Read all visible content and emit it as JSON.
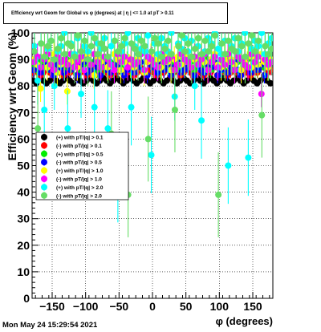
{
  "timestamp": "Mon May 24 15:29:54 2021",
  "chart_data": {
    "type": "scatter",
    "title": "Efficiency wrt Geom for Global vs φ (degrees) at | η | <= 1.0 at pT > 0.11",
    "xlabel": "φ (degrees)",
    "ylabel": "Efficiency wrt Geom (%)",
    "xlim": [
      -180,
      180
    ],
    "ylim": [
      0,
      100
    ],
    "x_ticks": [
      -150,
      -100,
      -50,
      0,
      50,
      100,
      150
    ],
    "x_tick_labels": [
      "−150",
      "−100",
      "−50",
      "0",
      "50",
      "100",
      "150"
    ],
    "y_ticks": [
      0,
      10,
      20,
      30,
      40,
      50,
      60,
      70,
      80,
      90,
      100
    ],
    "y_tick_labels": [
      "0",
      "10",
      "20",
      "30",
      "40",
      "50",
      "60",
      "70",
      "80",
      "90",
      "100"
    ],
    "grid": true,
    "legend_position": "middle-left",
    "bins": {
      "start": -177.5,
      "step": 5,
      "count": 72
    },
    "series": [
      {
        "name": "(+) with pT/|q| > 0.1",
        "color": "#000000",
        "marker": "circle",
        "values": [
          82,
          81,
          83,
          82,
          81,
          82,
          83,
          82,
          81,
          82,
          83,
          82,
          81,
          83,
          82,
          81,
          82,
          83,
          82,
          81,
          82,
          83,
          82,
          81,
          82,
          83,
          82,
          81,
          82,
          83,
          82,
          81,
          82,
          83,
          82,
          81,
          82,
          83,
          82,
          81,
          82,
          83,
          82,
          81,
          82,
          83,
          82,
          81,
          82,
          83,
          82,
          81,
          82,
          83,
          82,
          81,
          82,
          83,
          82,
          81,
          82,
          83,
          82,
          81,
          82,
          83,
          82,
          81,
          82,
          83,
          82,
          81
        ],
        "err": 1
      },
      {
        "name": "(-) with pT/|q| > 0.1",
        "color": "#ff0000",
        "marker": "circle",
        "values": [
          85,
          86,
          84,
          85,
          87,
          85,
          84,
          86,
          85,
          84,
          86,
          85,
          87,
          84,
          85,
          86,
          84,
          85,
          87,
          85,
          84,
          86,
          85,
          84,
          86,
          85,
          87,
          84,
          85,
          86,
          84,
          85,
          87,
          85,
          84,
          86,
          85,
          84,
          86,
          85,
          87,
          84,
          85,
          86,
          84,
          85,
          87,
          85,
          84,
          86,
          85,
          84,
          86,
          85,
          87,
          84,
          85,
          86,
          84,
          85,
          87,
          85,
          84,
          86,
          85,
          84,
          86,
          85,
          87,
          84,
          85,
          86
        ],
        "err": 2
      },
      {
        "name": "(+) with pT/|q| > 0.5",
        "color": "#00ee00",
        "marker": "circle",
        "values": [
          88,
          86,
          89,
          87,
          90,
          86,
          88,
          89,
          87,
          86,
          90,
          88,
          87,
          89,
          86,
          88,
          90,
          87,
          89,
          86,
          88,
          87,
          90,
          89,
          86,
          88,
          87,
          89,
          90,
          86,
          88,
          87,
          89,
          86,
          90,
          88,
          87,
          89,
          86,
          88,
          90,
          87,
          89,
          86,
          88,
          87,
          90,
          89,
          86,
          88,
          87,
          89,
          90,
          86,
          88,
          87,
          89,
          86,
          90,
          88,
          87,
          89,
          86,
          88,
          90,
          87,
          89,
          86,
          88,
          87,
          90,
          89
        ],
        "err": 3
      },
      {
        "name": "(-) with pT/|q| > 0.5",
        "color": "#0000ff",
        "marker": "circle",
        "values": [
          86,
          88,
          85,
          87,
          89,
          86,
          84,
          88,
          87,
          85,
          89,
          86,
          88,
          84,
          87,
          89,
          85,
          86,
          88,
          87,
          84,
          89,
          86,
          85,
          88,
          87,
          89,
          84,
          86,
          88,
          85,
          87,
          89,
          86,
          84,
          88,
          87,
          85,
          89,
          86,
          88,
          84,
          87,
          89,
          85,
          86,
          88,
          87,
          84,
          89,
          86,
          85,
          88,
          87,
          89,
          84,
          86,
          88,
          85,
          87,
          89,
          86,
          84,
          88,
          87,
          85,
          89,
          86,
          88,
          84,
          87,
          89
        ],
        "err": 3
      },
      {
        "name": "(+) with pT/|q| > 1.0",
        "color": "#ffff00",
        "marker": "circle",
        "values": [
          90,
          88,
          79,
          91,
          87,
          89,
          92,
          85,
          88,
          90,
          78,
          89,
          91,
          87,
          90,
          86,
          92,
          88,
          84,
          90,
          89,
          91,
          87,
          88,
          92,
          90,
          86,
          89,
          91,
          88,
          87,
          90,
          92,
          85,
          89,
          91,
          88,
          90,
          87,
          92,
          89,
          86,
          90,
          91,
          88,
          89,
          92,
          87,
          90,
          88,
          91,
          89,
          86,
          90,
          92,
          88,
          87,
          91,
          89,
          90,
          88,
          92,
          86,
          89,
          91,
          87,
          90,
          88,
          92,
          89,
          87,
          90
        ],
        "err": 5
      },
      {
        "name": "(-) with pT/|q| > 1.0",
        "color": "#ff00ff",
        "marker": "circle",
        "values": [
          89,
          91,
          87,
          90,
          92,
          88,
          86,
          91,
          89,
          90,
          88,
          92,
          87,
          89,
          91,
          86,
          90,
          88,
          92,
          89,
          87,
          91,
          90,
          88,
          86,
          92,
          89,
          91,
          87,
          90,
          88,
          89,
          92,
          86,
          91,
          90,
          88,
          87,
          92,
          89,
          90,
          91,
          86,
          88,
          92,
          90,
          89,
          87,
          91,
          88,
          90,
          92,
          86,
          89,
          91,
          87,
          90,
          88,
          92,
          89,
          86,
          91,
          90,
          88,
          87,
          92,
          89,
          91,
          77,
          90,
          88,
          89
        ],
        "err": 5
      },
      {
        "name": "(+) with pT/|q| > 2.0",
        "color": "#00ffff",
        "marker": "circle",
        "values": [
          95,
          82,
          96,
          71,
          94,
          97,
          80,
          93,
          95,
          100,
          64,
          96,
          92,
          98,
          77,
          95,
          93,
          100,
          72,
          96,
          94,
          98,
          64,
          95,
          97,
          43,
          93,
          96,
          100,
          72,
          95,
          98,
          94,
          93,
          99,
          54,
          96,
          92,
          98,
          95,
          93,
          100,
          76,
          96,
          94,
          98,
          93,
          97,
          80,
          95,
          67,
          93,
          98,
          96,
          100,
          94,
          92,
          97,
          50,
          95,
          98,
          93,
          96,
          100,
          53,
          94,
          97,
          95,
          100,
          92,
          96,
          98
        ],
        "err": 9
      },
      {
        "name": "(-) with pT/|q| > 2.0",
        "color": "#66dd66",
        "marker": "circle",
        "values": [
          93,
          64,
          96,
          91,
          95,
          97,
          90,
          94,
          98,
          92,
          96,
          95,
          91,
          99,
          93,
          97,
          90,
          95,
          98,
          92,
          96,
          94,
          91,
          62,
          97,
          93,
          95,
          98,
          39,
          96,
          94,
          92,
          97,
          95,
          60,
          93,
          98,
          96,
          91,
          94,
          97,
          92,
          71,
          95,
          99,
          93,
          96,
          91,
          94,
          98,
          92,
          97,
          93,
          95,
          99,
          39,
          96,
          92,
          97,
          94,
          93,
          98,
          95,
          91,
          96,
          99,
          93,
          97,
          69,
          95,
          92,
          94
        ],
        "err": 10
      }
    ]
  }
}
